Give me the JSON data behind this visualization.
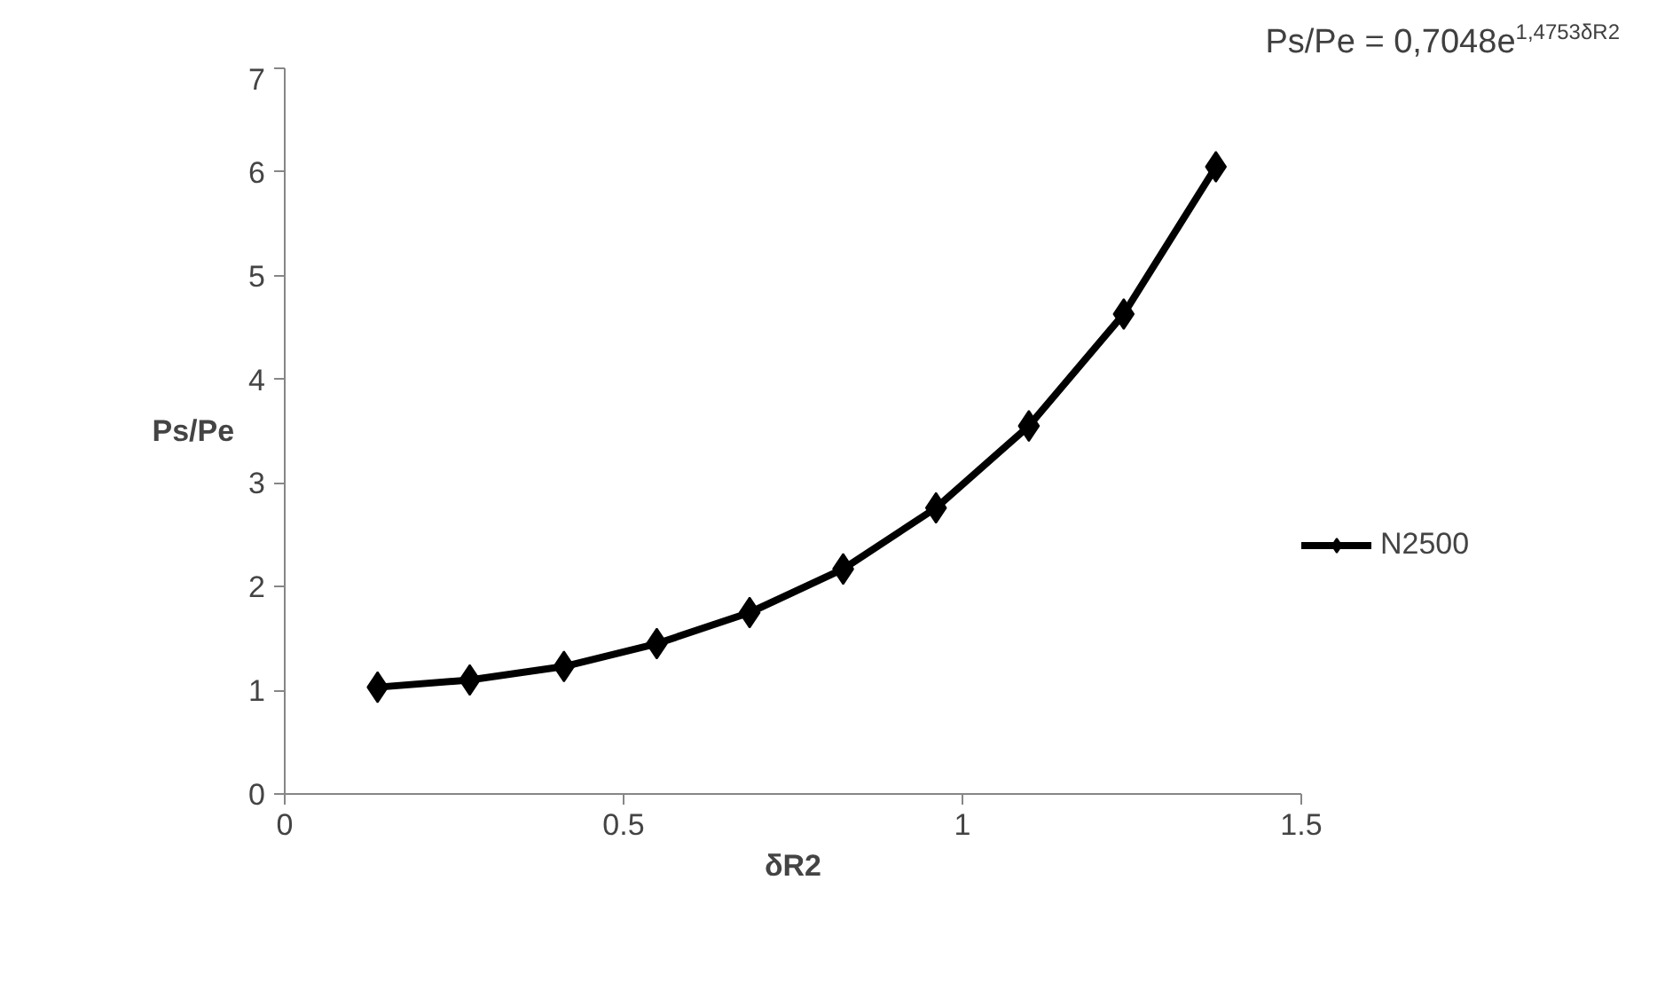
{
  "chart_data": {
    "type": "line",
    "xlabel": "δR2",
    "ylabel": "Ps/Pe",
    "x": [
      0.137,
      0.273,
      0.412,
      0.549,
      0.686,
      0.824,
      0.961,
      1.098,
      1.238,
      1.374
    ],
    "series": [
      {
        "name": "N2500",
        "color": "#000000",
        "values": [
          1.03,
          1.1,
          1.23,
          1.45,
          1.75,
          2.17,
          2.76,
          3.55,
          4.63,
          6.05
        ]
      }
    ],
    "xlim": [
      0,
      1.5
    ],
    "xticks": [
      0,
      0.5,
      1,
      1.5
    ],
    "ylim": [
      0,
      7
    ],
    "yticks": [
      0,
      1,
      2,
      3,
      4,
      5,
      6,
      7
    ],
    "annotations": [
      "Ps/Pe = 0,7048e$^{1,4753δR2}$"
    ],
    "marker": "diamond",
    "line_style": "solid",
    "grid": false,
    "legend": "right"
  }
}
